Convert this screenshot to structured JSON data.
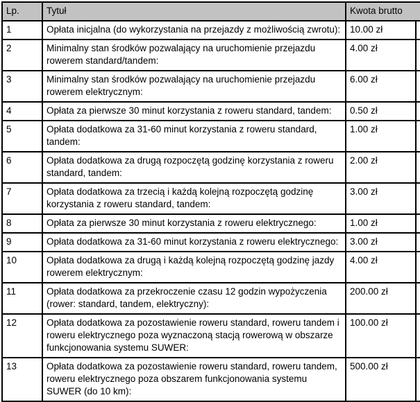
{
  "colors": {
    "header_bg": "#c2c2c2",
    "border": "#000000",
    "text": "#000000",
    "background": "#ffffff"
  },
  "table": {
    "columns": {
      "lp": "Lp.",
      "title": "Tytuł",
      "amount": "Kwota brutto"
    },
    "rows": [
      {
        "lp": "1",
        "title": "Opłata inicjalna (do wykorzystania na przejazdy z możliwością zwrotu):",
        "amount": "10.00 zł"
      },
      {
        "lp": "2",
        "title": "Minimalny stan środków pozwalający na uruchomienie przejazdu rowerem standard/tandem:",
        "amount": "4.00 zł"
      },
      {
        "lp": "3",
        "title": "Minimalny stan środków pozwalający na uruchomienie przejazdu rowerem elektrycznym:",
        "amount": "6.00 zł"
      },
      {
        "lp": "4",
        "title": "Opłata za pierwsze 30 minut korzystania z roweru standard, tandem:",
        "amount": "0.50 zł"
      },
      {
        "lp": "5",
        "title": "Opłata dodatkowa za 31-60 minut korzystania z roweru standard, tandem:",
        "amount": "1.00 zł"
      },
      {
        "lp": "6",
        "title": "Opłata dodatkowa za drugą rozpoczętą godzinę korzystania z roweru standard, tandem:",
        "amount": "2.00 zł"
      },
      {
        "lp": "7",
        "title": "Opłata dodatkowa za trzecią i każdą kolejną rozpoczętą godzinę korzystania z roweru standard, tandem:",
        "amount": "3.00 zł"
      },
      {
        "lp": "8",
        "title": "Opłata za pierwsze 30 minut korzystania z roweru elektrycznego:",
        "amount": "1.00 zł"
      },
      {
        "lp": "9",
        "title": "Opłata dodatkowa za 31-60 minut korzystania z roweru elektrycznego:",
        "amount": "3.00 zł"
      },
      {
        "lp": "10",
        "title": "Opłata dodatkowa za drugą i każdą kolejną rozpoczętą godzinę jazdy rowerem elektrycznym:",
        "amount": "4.00 zł"
      },
      {
        "lp": "11",
        "title": "Opłata dodatkowa za przekroczenie czasu 12 godzin wypożyczenia (rower: standard, tandem, elektryczny):",
        "amount": "200.00 zł"
      },
      {
        "lp": "12",
        "title": "Opłata dodatkowa za pozostawienie roweru standard, roweru tandem i roweru elektrycznego poza wyznaczoną stacją rowerową w obszarze funkcjonowania systemu SUWER:",
        "amount": "100.00 zł"
      },
      {
        "lp": "13",
        "title": "Opłata dodatkowa za pozostawienie roweru standard, roweru tandem, roweru elektrycznego poza obszarem funkcjonowania systemu SUWER (do 10 km):",
        "amount": "500.00 zł"
      }
    ]
  }
}
